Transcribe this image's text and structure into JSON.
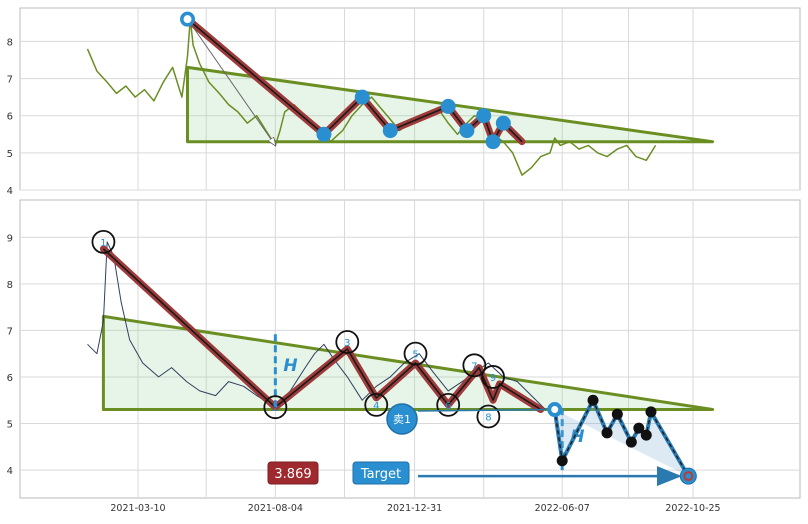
{
  "chart_data": [
    {
      "type": "line",
      "panel": "top",
      "title": "",
      "xlabel": "",
      "ylabel": "",
      "ylim": [
        4,
        8.9
      ],
      "y_ticks": [
        4,
        5,
        6,
        7,
        8
      ],
      "grid": true,
      "series": [
        {
          "color": "#6b8e23",
          "x": [
            "2021-01-15",
            "2021-01-25",
            "2021-02-05",
            "2021-02-15",
            "2021-02-25",
            "2021-03-07",
            "2021-03-17",
            "2021-03-27",
            "2021-04-06",
            "2021-04-16",
            "2021-04-26",
            "2021-05-02",
            "2021-05-05",
            "2021-05-08",
            "2021-05-15",
            "2021-05-25",
            "2021-06-05",
            "2021-06-15",
            "2021-06-25",
            "2021-07-05",
            "2021-07-15",
            "2021-07-25",
            "2021-08-04",
            "2021-08-09",
            "2021-08-14",
            "2021-08-24",
            "2021-09-05",
            "2021-09-15",
            "2021-09-25",
            "2021-10-02",
            "2021-10-15",
            "2021-10-25",
            "2021-11-05",
            "2021-11-15",
            "2021-11-25",
            "2021-12-05",
            "2021-12-15",
            "2021-12-25",
            "2022-01-05",
            "2022-01-15",
            "2022-01-25",
            "2022-02-05",
            "2022-02-15",
            "2022-02-25",
            "2022-03-05",
            "2022-03-15",
            "2022-03-25",
            "2022-04-05",
            "2022-04-15",
            "2022-04-25",
            "2022-05-05",
            "2022-05-15",
            "2022-05-25",
            "2022-05-30",
            "2022-06-05",
            "2022-06-15",
            "2022-06-25",
            "2022-07-05",
            "2022-07-15",
            "2022-07-25",
            "2022-08-05",
            "2022-08-15",
            "2022-08-25",
            "2022-09-05",
            "2022-09-15"
          ],
          "values": [
            7.8,
            7.2,
            6.9,
            6.6,
            6.8,
            6.5,
            6.7,
            6.4,
            6.9,
            7.3,
            6.5,
            7.6,
            8.6,
            7.9,
            7.4,
            6.9,
            6.6,
            6.3,
            6.1,
            5.8,
            6.0,
            5.6,
            5.2,
            5.6,
            6.1,
            6.3,
            6.0,
            5.8,
            5.6,
            5.3,
            5.6,
            6.0,
            6.3,
            6.5,
            6.2,
            5.9,
            5.6,
            5.8,
            6.0,
            6.1,
            6.2,
            5.8,
            5.5,
            5.8,
            6.0,
            5.9,
            5.5,
            5.3,
            5.0,
            4.4,
            4.6,
            4.9,
            5.0,
            5.4,
            5.2,
            5.3,
            5.1,
            5.2,
            5.0,
            4.9,
            5.1,
            5.2,
            4.9,
            4.8,
            5.2
          ]
        }
      ],
      "triangle": {
        "x": [
          "2021-05-02",
          "2021-05-02",
          "2022-11-15"
        ],
        "y": [
          5.3,
          7.3,
          5.3
        ],
        "color": "#6b8e23"
      },
      "pattern_line": {
        "x": [
          "2021-05-02",
          "2021-09-25",
          "2021-11-05",
          "2021-12-05",
          "2022-02-05",
          "2022-02-25",
          "2022-03-15",
          "2022-03-25",
          "2022-04-05",
          "2022-04-25"
        ],
        "y": [
          8.6,
          5.5,
          6.5,
          5.6,
          6.25,
          5.6,
          6.0,
          5.3,
          5.8,
          5.3
        ]
      },
      "markers": {
        "x": [
          "2021-05-02",
          "2021-09-25",
          "2021-11-05",
          "2021-12-05",
          "2022-02-05",
          "2022-02-25",
          "2022-03-15",
          "2022-03-25",
          "2022-04-05"
        ],
        "y": [
          8.6,
          5.5,
          6.5,
          5.6,
          6.25,
          5.6,
          6.0,
          5.3,
          5.8
        ]
      },
      "arrow": {
        "x": [
          "2021-05-02",
          "2021-08-04"
        ],
        "y": [
          8.6,
          5.2
        ]
      }
    },
    {
      "type": "line",
      "panel": "bottom",
      "title": "",
      "xlabel": "",
      "ylabel": "",
      "ylim": [
        3.4,
        9.8
      ],
      "y_ticks": [
        4,
        5,
        6,
        7,
        8,
        9
      ],
      "x_ticks": [
        "2021-03-10",
        "2021-08-04",
        "2021-12-31",
        "2022-06-07",
        "2022-10-25"
      ],
      "grid": true,
      "series": [
        {
          "color": "#2f3f5f",
          "x": [
            "2021-01-15",
            "2021-01-25",
            "2021-02-01",
            "2021-02-05",
            "2021-02-12",
            "2021-02-20",
            "2021-03-01",
            "2021-03-15",
            "2021-04-01",
            "2021-04-15",
            "2021-05-01",
            "2021-05-15",
            "2021-06-01",
            "2021-06-15",
            "2021-07-01",
            "2021-07-15",
            "2021-08-04",
            "2021-08-20",
            "2021-09-05",
            "2021-09-15",
            "2021-09-25",
            "2021-10-05",
            "2021-10-20",
            "2021-11-05",
            "2021-11-20",
            "2021-12-05",
            "2021-12-20",
            "2022-01-05",
            "2022-01-20",
            "2022-02-05",
            "2022-02-20",
            "2022-03-05",
            "2022-03-20",
            "2022-04-05",
            "2022-04-20",
            "2022-05-05",
            "2022-05-20"
          ],
          "values": [
            6.7,
            6.5,
            7.2,
            8.9,
            8.6,
            7.6,
            6.8,
            6.3,
            6.0,
            6.2,
            5.9,
            5.7,
            5.6,
            5.9,
            5.8,
            5.6,
            5.35,
            5.7,
            6.2,
            6.5,
            6.7,
            6.4,
            6.0,
            5.5,
            5.8,
            6.0,
            6.3,
            6.5,
            6.1,
            5.7,
            5.9,
            6.1,
            6.3,
            6.0,
            5.9,
            5.6,
            5.3
          ]
        }
      ],
      "triangle": {
        "x": [
          "2021-02-01",
          "2021-02-01",
          "2022-11-15"
        ],
        "y": [
          5.3,
          7.3,
          5.3
        ],
        "color": "#6b8e23"
      },
      "pattern_line": {
        "x": [
          "2021-02-01",
          "2021-08-04",
          "2021-10-20",
          "2021-11-20",
          "2022-01-01",
          "2022-02-05",
          "2022-03-10",
          "2022-03-25",
          "2022-04-01",
          "2022-05-15"
        ],
        "y": [
          8.75,
          5.35,
          6.6,
          5.55,
          6.3,
          5.4,
          6.2,
          5.5,
          5.85,
          5.3
        ]
      },
      "points": [
        {
          "label": "1",
          "x": "2021-02-01",
          "y": 8.9
        },
        {
          "label": "2",
          "x": "2021-08-04",
          "y": 5.35
        },
        {
          "label": "3",
          "x": "2021-10-20",
          "y": 6.75
        },
        {
          "label": "4",
          "x": "2021-11-20",
          "y": 5.4
        },
        {
          "label": "5",
          "x": "2022-01-01",
          "y": 6.5
        },
        {
          "label": "6",
          "x": "2022-02-05",
          "y": 5.4
        },
        {
          "label": "7",
          "x": "2022-03-05",
          "y": 6.25
        },
        {
          "label": "8",
          "x": "2022-03-20",
          "y": 5.15
        },
        {
          "label": "9",
          "x": "2022-03-25",
          "y": 6.0
        }
      ],
      "height_markers": [
        {
          "label": "H",
          "x": "2021-08-04",
          "y": [
            5.35,
            7.0
          ]
        },
        {
          "label": "H",
          "x": "2022-06-07",
          "y": [
            4.0,
            5.3
          ]
        }
      ],
      "forecast_path": {
        "x": [
          "2022-05-30",
          "2022-06-07",
          "2022-07-10",
          "2022-07-25",
          "2022-08-05",
          "2022-08-20",
          "2022-08-28",
          "2022-09-05",
          "2022-09-10",
          "2022-10-20"
        ],
        "y": [
          5.3,
          4.2,
          5.5,
          4.8,
          5.2,
          4.6,
          4.9,
          4.75,
          5.25,
          3.87
        ]
      },
      "sell_label": "卖1",
      "sell_point": {
        "x": "2022-05-30",
        "y": 5.3
      },
      "target_label": "Target",
      "target_value": "3.869",
      "target_point": {
        "x": "2022-10-20",
        "y": 3.87
      }
    }
  ]
}
